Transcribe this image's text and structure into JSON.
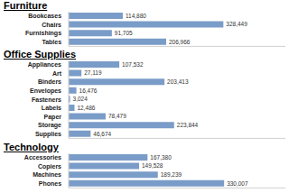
{
  "chart_data": [
    {
      "type": "bar",
      "title": "Furniture",
      "orientation": "horizontal",
      "data_labels": true,
      "tick_labels": "y",
      "color": "#7a9cc8",
      "xlim": [
        0,
        460000
      ],
      "categories": [
        "Bookcases",
        "Chairs",
        "Furnishings",
        "Tables"
      ],
      "values": [
        114880,
        328449,
        91705,
        206966
      ],
      "value_labels": [
        "114,880",
        "328,449",
        "91,705",
        "206,966"
      ]
    },
    {
      "type": "bar",
      "title": "Office Supplies",
      "orientation": "horizontal",
      "data_labels": true,
      "tick_labels": "y",
      "color": "#7a9cc8",
      "xlim": [
        0,
        460000
      ],
      "categories": [
        "Appliances",
        "Art",
        "Binders",
        "Envelopes",
        "Fasteners",
        "Labels",
        "Paper",
        "Storage",
        "Supplies"
      ],
      "values": [
        107532,
        27119,
        203413,
        16476,
        3024,
        12486,
        78479,
        223844,
        46674
      ],
      "value_labels": [
        "107,532",
        "27,119",
        "203,413",
        "16,476",
        "3,024",
        "12,486",
        "78,479",
        "223,844",
        "46,674"
      ]
    },
    {
      "type": "bar",
      "title": "Technology",
      "orientation": "horizontal",
      "data_labels": true,
      "tick_labels": "y",
      "color": "#7a9cc8",
      "xlim": [
        0,
        460000
      ],
      "categories": [
        "Accessories",
        "Copiers",
        "Machines",
        "Phones"
      ],
      "values": [
        167380,
        149528,
        189239,
        330007
      ],
      "value_labels": [
        "167,380",
        "149,528",
        "189,239",
        "330,007"
      ]
    }
  ]
}
